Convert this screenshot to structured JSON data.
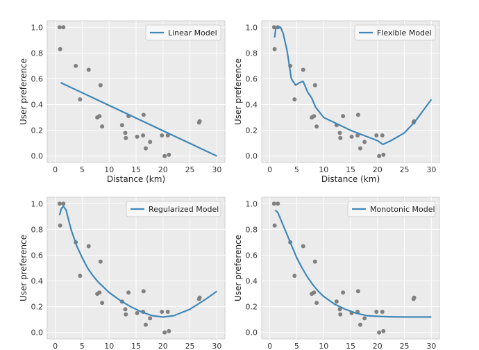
{
  "chart_data": [
    {
      "type": "scatter",
      "xlabel": "Distance (km)",
      "ylabel": "User preference",
      "xlim": [
        -1.5,
        31.5
      ],
      "ylim": [
        -0.05,
        1.05
      ],
      "xticks": [
        0,
        5,
        10,
        15,
        20,
        25,
        30
      ],
      "yticks": [
        0.0,
        0.2,
        0.4,
        0.6,
        0.8,
        1.0
      ],
      "grid": true,
      "legend_position": "top-right",
      "scatter": {
        "x": [
          0.8,
          1.5,
          0.9,
          3.8,
          4.6,
          6.2,
          7.8,
          8.2,
          8.4,
          8.7,
          12.4,
          13.0,
          13.1,
          13.6,
          15.2,
          16.3,
          16.4,
          16.8,
          17.6,
          19.8,
          20.3,
          20.9,
          21.1,
          26.7,
          26.8
        ],
        "y": [
          1.0,
          1.0,
          0.83,
          0.7,
          0.44,
          0.67,
          0.3,
          0.31,
          0.55,
          0.23,
          0.24,
          0.18,
          0.14,
          0.31,
          0.15,
          0.16,
          0.32,
          0.06,
          0.11,
          0.16,
          0.0,
          0.16,
          0.01,
          0.26,
          0.27
        ],
        "color": "#808080"
      },
      "series": [
        {
          "name": "Linear Model",
          "color": "#3f88b8",
          "x": [
            1,
            30
          ],
          "y": [
            0.57,
            0.0
          ]
        }
      ]
    },
    {
      "type": "scatter",
      "xlabel": "Distance (km)",
      "ylabel": "User preference",
      "xlim": [
        -1.5,
        31.5
      ],
      "ylim": [
        -0.05,
        1.05
      ],
      "xticks": [
        0,
        5,
        10,
        15,
        20,
        25,
        30
      ],
      "yticks": [
        0.0,
        0.2,
        0.4,
        0.6,
        0.8,
        1.0
      ],
      "grid": true,
      "legend_position": "top-right",
      "scatter": {
        "x": [
          0.8,
          1.5,
          0.9,
          3.8,
          4.6,
          6.2,
          7.8,
          8.2,
          8.4,
          8.7,
          12.4,
          13.0,
          13.1,
          13.6,
          15.2,
          16.3,
          16.4,
          16.8,
          17.6,
          19.8,
          20.3,
          20.9,
          21.1,
          26.7,
          26.8
        ],
        "y": [
          1.0,
          1.0,
          0.83,
          0.7,
          0.44,
          0.67,
          0.3,
          0.31,
          0.55,
          0.23,
          0.24,
          0.18,
          0.14,
          0.31,
          0.15,
          0.16,
          0.32,
          0.06,
          0.11,
          0.16,
          0.0,
          0.16,
          0.01,
          0.26,
          0.27
        ],
        "color": "#808080"
      },
      "series": [
        {
          "name": "Flexible Model",
          "color": "#3f88b8",
          "x": [
            0.9,
            1.1,
            1.5,
            2.0,
            2.5,
            3.2,
            4.0,
            4.8,
            5.5,
            6.2,
            7.0,
            7.8,
            8.5,
            10.0,
            12.5,
            15.0,
            17.5,
            20.0,
            21.0,
            22.5,
            25.0,
            27.0,
            30.0
          ],
          "y": [
            0.92,
            0.99,
            1.0,
            1.0,
            0.95,
            0.82,
            0.6,
            0.55,
            0.57,
            0.58,
            0.5,
            0.45,
            0.38,
            0.3,
            0.25,
            0.2,
            0.16,
            0.12,
            0.09,
            0.12,
            0.18,
            0.27,
            0.44
          ]
        }
      ]
    },
    {
      "type": "scatter",
      "xlabel": "",
      "ylabel": "User preference",
      "xlim": [
        -1.5,
        31.5
      ],
      "ylim": [
        -0.05,
        1.05
      ],
      "xticks": [
        0,
        5,
        10,
        15,
        20,
        25,
        30
      ],
      "yticks": [
        0.0,
        0.2,
        0.4,
        0.6,
        0.8,
        1.0
      ],
      "grid": true,
      "legend_position": "top-right",
      "scatter": {
        "x": [
          0.8,
          1.5,
          0.9,
          3.8,
          4.6,
          6.2,
          7.8,
          8.2,
          8.4,
          8.7,
          12.4,
          13.0,
          13.1,
          13.6,
          15.2,
          16.3,
          16.4,
          16.8,
          17.6,
          19.8,
          20.3,
          20.9,
          21.1,
          26.7,
          26.8
        ],
        "y": [
          1.0,
          1.0,
          0.83,
          0.7,
          0.44,
          0.67,
          0.3,
          0.31,
          0.55,
          0.23,
          0.24,
          0.18,
          0.14,
          0.31,
          0.15,
          0.16,
          0.32,
          0.06,
          0.11,
          0.16,
          0.0,
          0.16,
          0.01,
          0.26,
          0.27
        ],
        "color": "#808080"
      },
      "series": [
        {
          "name": "Regularized Model",
          "color": "#3f88b8",
          "x": [
            0.8,
            1.1,
            1.5,
            2.0,
            2.5,
            3.0,
            4.0,
            5.0,
            6.0,
            7.0,
            8.0,
            9.0,
            10.0,
            12.0,
            14.0,
            16.0,
            18.0,
            20.0,
            22.0,
            25.0,
            28.0,
            30.0
          ],
          "y": [
            0.91,
            0.96,
            0.98,
            0.95,
            0.87,
            0.79,
            0.67,
            0.58,
            0.5,
            0.44,
            0.39,
            0.35,
            0.31,
            0.25,
            0.2,
            0.16,
            0.13,
            0.12,
            0.13,
            0.18,
            0.26,
            0.32
          ]
        }
      ]
    },
    {
      "type": "scatter",
      "xlabel": "",
      "ylabel": "User preference",
      "xlim": [
        -1.5,
        31.5
      ],
      "ylim": [
        -0.05,
        1.05
      ],
      "xticks": [
        0,
        5,
        10,
        15,
        20,
        25,
        30
      ],
      "yticks": [
        0.0,
        0.2,
        0.4,
        0.6,
        0.8,
        1.0
      ],
      "grid": true,
      "legend_position": "top-right",
      "scatter": {
        "x": [
          0.8,
          1.5,
          0.9,
          3.8,
          4.6,
          6.2,
          7.8,
          8.2,
          8.4,
          8.7,
          12.4,
          13.0,
          13.1,
          13.6,
          15.2,
          16.3,
          16.4,
          16.8,
          17.6,
          19.8,
          20.3,
          20.9,
          21.1,
          26.7,
          26.8
        ],
        "y": [
          1.0,
          1.0,
          0.83,
          0.7,
          0.44,
          0.67,
          0.3,
          0.31,
          0.55,
          0.23,
          0.24,
          0.18,
          0.14,
          0.31,
          0.15,
          0.16,
          0.32,
          0.06,
          0.11,
          0.16,
          0.0,
          0.16,
          0.01,
          0.26,
          0.27
        ],
        "color": "#808080"
      },
      "series": [
        {
          "name": "Monotonic Model",
          "color": "#3f88b8",
          "x": [
            1.0,
            1.5,
            2.0,
            3.0,
            4.0,
            5.0,
            6.0,
            7.0,
            8.0,
            9.0,
            10.0,
            12.0,
            14.0,
            16.0,
            18.0,
            20.0,
            22.0,
            25.0,
            28.0,
            30.0
          ],
          "y": [
            0.95,
            0.93,
            0.88,
            0.78,
            0.68,
            0.58,
            0.5,
            0.43,
            0.37,
            0.32,
            0.28,
            0.22,
            0.18,
            0.15,
            0.13,
            0.125,
            0.122,
            0.12,
            0.12,
            0.12
          ]
        }
      ]
    }
  ]
}
